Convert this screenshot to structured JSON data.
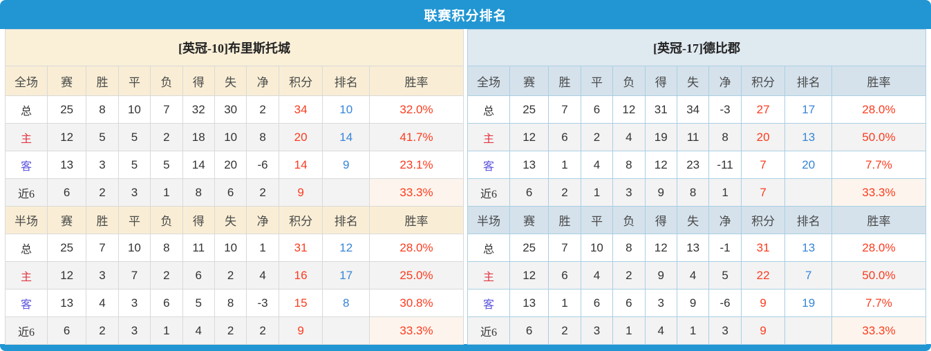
{
  "title": "联赛积分排名",
  "sections": {
    "full": "全场",
    "half": "半场"
  },
  "stat_columns": [
    "赛",
    "胜",
    "平",
    "负",
    "得",
    "失",
    "净",
    "积分",
    "排名",
    "胜率"
  ],
  "teams": [
    {
      "id": "home",
      "header": {
        "prefix": "[英冠-10]",
        "name": "布里斯托城"
      },
      "theme": {
        "header_bg": "#faf0d8",
        "colhead_bg": "#f9eed5",
        "border": "#d9d9d9"
      },
      "full_rows": [
        {
          "label": "总",
          "values": [
            "25",
            "8",
            "10",
            "7",
            "32",
            "30",
            "2",
            "34",
            "10",
            "32.0%"
          ]
        },
        {
          "label": "主",
          "values": [
            "12",
            "5",
            "5",
            "2",
            "18",
            "10",
            "8",
            "20",
            "14",
            "41.7%"
          ]
        },
        {
          "label": "客",
          "values": [
            "13",
            "3",
            "5",
            "5",
            "14",
            "20",
            "-6",
            "14",
            "9",
            "23.1%"
          ]
        },
        {
          "label": "近6",
          "values": [
            "6",
            "2",
            "3",
            "1",
            "8",
            "6",
            "2",
            "9",
            "",
            "33.3%"
          ]
        }
      ],
      "half_rows": [
        {
          "label": "总",
          "values": [
            "25",
            "7",
            "10",
            "8",
            "11",
            "10",
            "1",
            "31",
            "12",
            "28.0%"
          ]
        },
        {
          "label": "主",
          "values": [
            "12",
            "3",
            "7",
            "2",
            "6",
            "2",
            "4",
            "16",
            "17",
            "25.0%"
          ]
        },
        {
          "label": "客",
          "values": [
            "13",
            "4",
            "3",
            "6",
            "5",
            "8",
            "-3",
            "15",
            "8",
            "30.8%"
          ]
        },
        {
          "label": "近6",
          "values": [
            "6",
            "2",
            "3",
            "1",
            "4",
            "2",
            "2",
            "9",
            "",
            "33.3%"
          ]
        }
      ]
    },
    {
      "id": "away",
      "header": {
        "prefix": "[英冠-17]",
        "name": "德比郡"
      },
      "theme": {
        "header_bg": "#dfe9f0",
        "colhead_bg": "#d5e2ec",
        "border": "#a9cfe2"
      },
      "full_rows": [
        {
          "label": "总",
          "values": [
            "25",
            "7",
            "6",
            "12",
            "31",
            "34",
            "-3",
            "27",
            "17",
            "28.0%"
          ]
        },
        {
          "label": "主",
          "values": [
            "12",
            "6",
            "2",
            "4",
            "19",
            "11",
            "8",
            "20",
            "13",
            "50.0%"
          ]
        },
        {
          "label": "客",
          "values": [
            "13",
            "1",
            "4",
            "8",
            "12",
            "23",
            "-11",
            "7",
            "20",
            "7.7%"
          ]
        },
        {
          "label": "近6",
          "values": [
            "6",
            "2",
            "1",
            "3",
            "9",
            "8",
            "1",
            "7",
            "",
            "33.3%"
          ]
        }
      ],
      "half_rows": [
        {
          "label": "总",
          "values": [
            "25",
            "7",
            "10",
            "8",
            "12",
            "13",
            "-1",
            "31",
            "13",
            "28.0%"
          ]
        },
        {
          "label": "主",
          "values": [
            "12",
            "6",
            "4",
            "2",
            "9",
            "4",
            "5",
            "22",
            "7",
            "50.0%"
          ]
        },
        {
          "label": "客",
          "values": [
            "13",
            "1",
            "6",
            "6",
            "3",
            "9",
            "-6",
            "9",
            "19",
            "7.7%"
          ]
        },
        {
          "label": "近6",
          "values": [
            "6",
            "2",
            "3",
            "1",
            "4",
            "1",
            "3",
            "9",
            "",
            "33.3%"
          ]
        }
      ]
    }
  ],
  "colors": {
    "bar": "#2196d3",
    "title_text": "#ffffff",
    "points": "#fb3b1e",
    "rank": "#3585d8",
    "win_rate": "#fb3b1e",
    "home_label": "#e23442",
    "away_label": "#5a52dd",
    "text": "#333333",
    "header_text": "#4a4a4a",
    "row_alt_bg": "#f3f3f3",
    "near6_rate_bg": "#fdf5ed"
  }
}
